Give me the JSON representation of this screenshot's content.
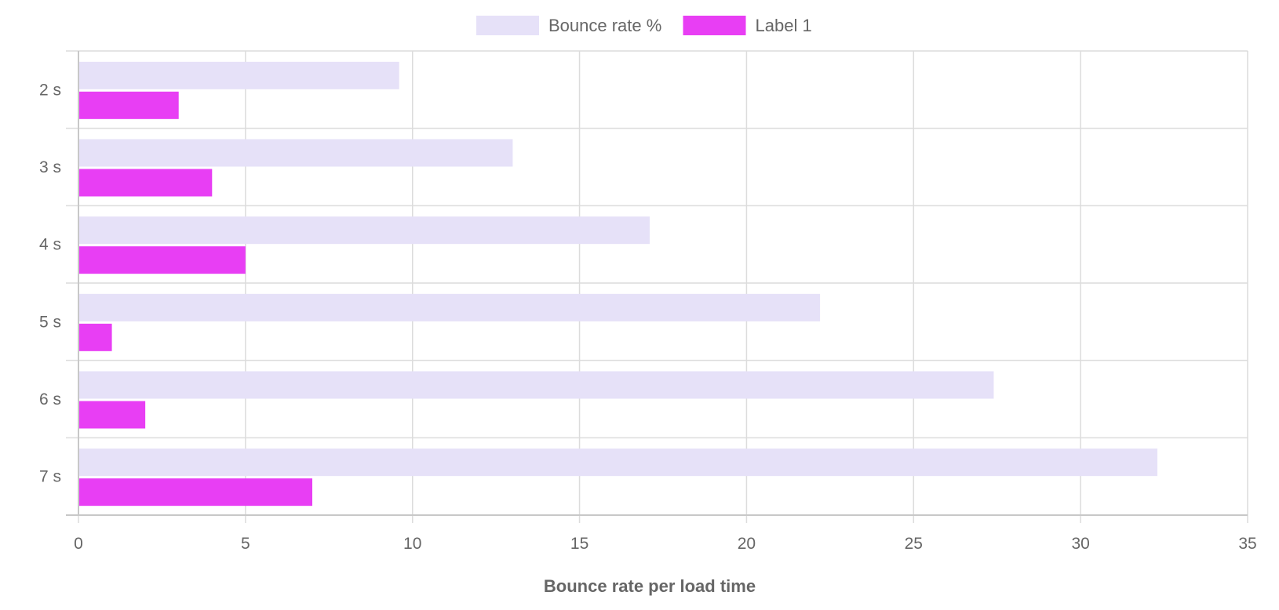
{
  "chart_data": {
    "type": "bar",
    "orientation": "horizontal",
    "categories": [
      "2 s",
      "3 s",
      "4 s",
      "5 s",
      "6 s",
      "7 s"
    ],
    "series": [
      {
        "name": "Bounce rate %",
        "values": [
          9.6,
          13,
          17.1,
          22.2,
          27.4,
          32.3
        ],
        "color": "#e6e1f8"
      },
      {
        "name": "Label 1",
        "values": [
          3,
          4,
          5,
          1,
          2,
          7
        ],
        "color": "#e83ef4"
      }
    ],
    "xlabel": "Bounce rate per load time",
    "ylabel": "",
    "xlim": [
      0,
      35
    ],
    "xticks": [
      0,
      5,
      10,
      15,
      20,
      25,
      30,
      35
    ],
    "grid": true,
    "legend": "top-center"
  }
}
